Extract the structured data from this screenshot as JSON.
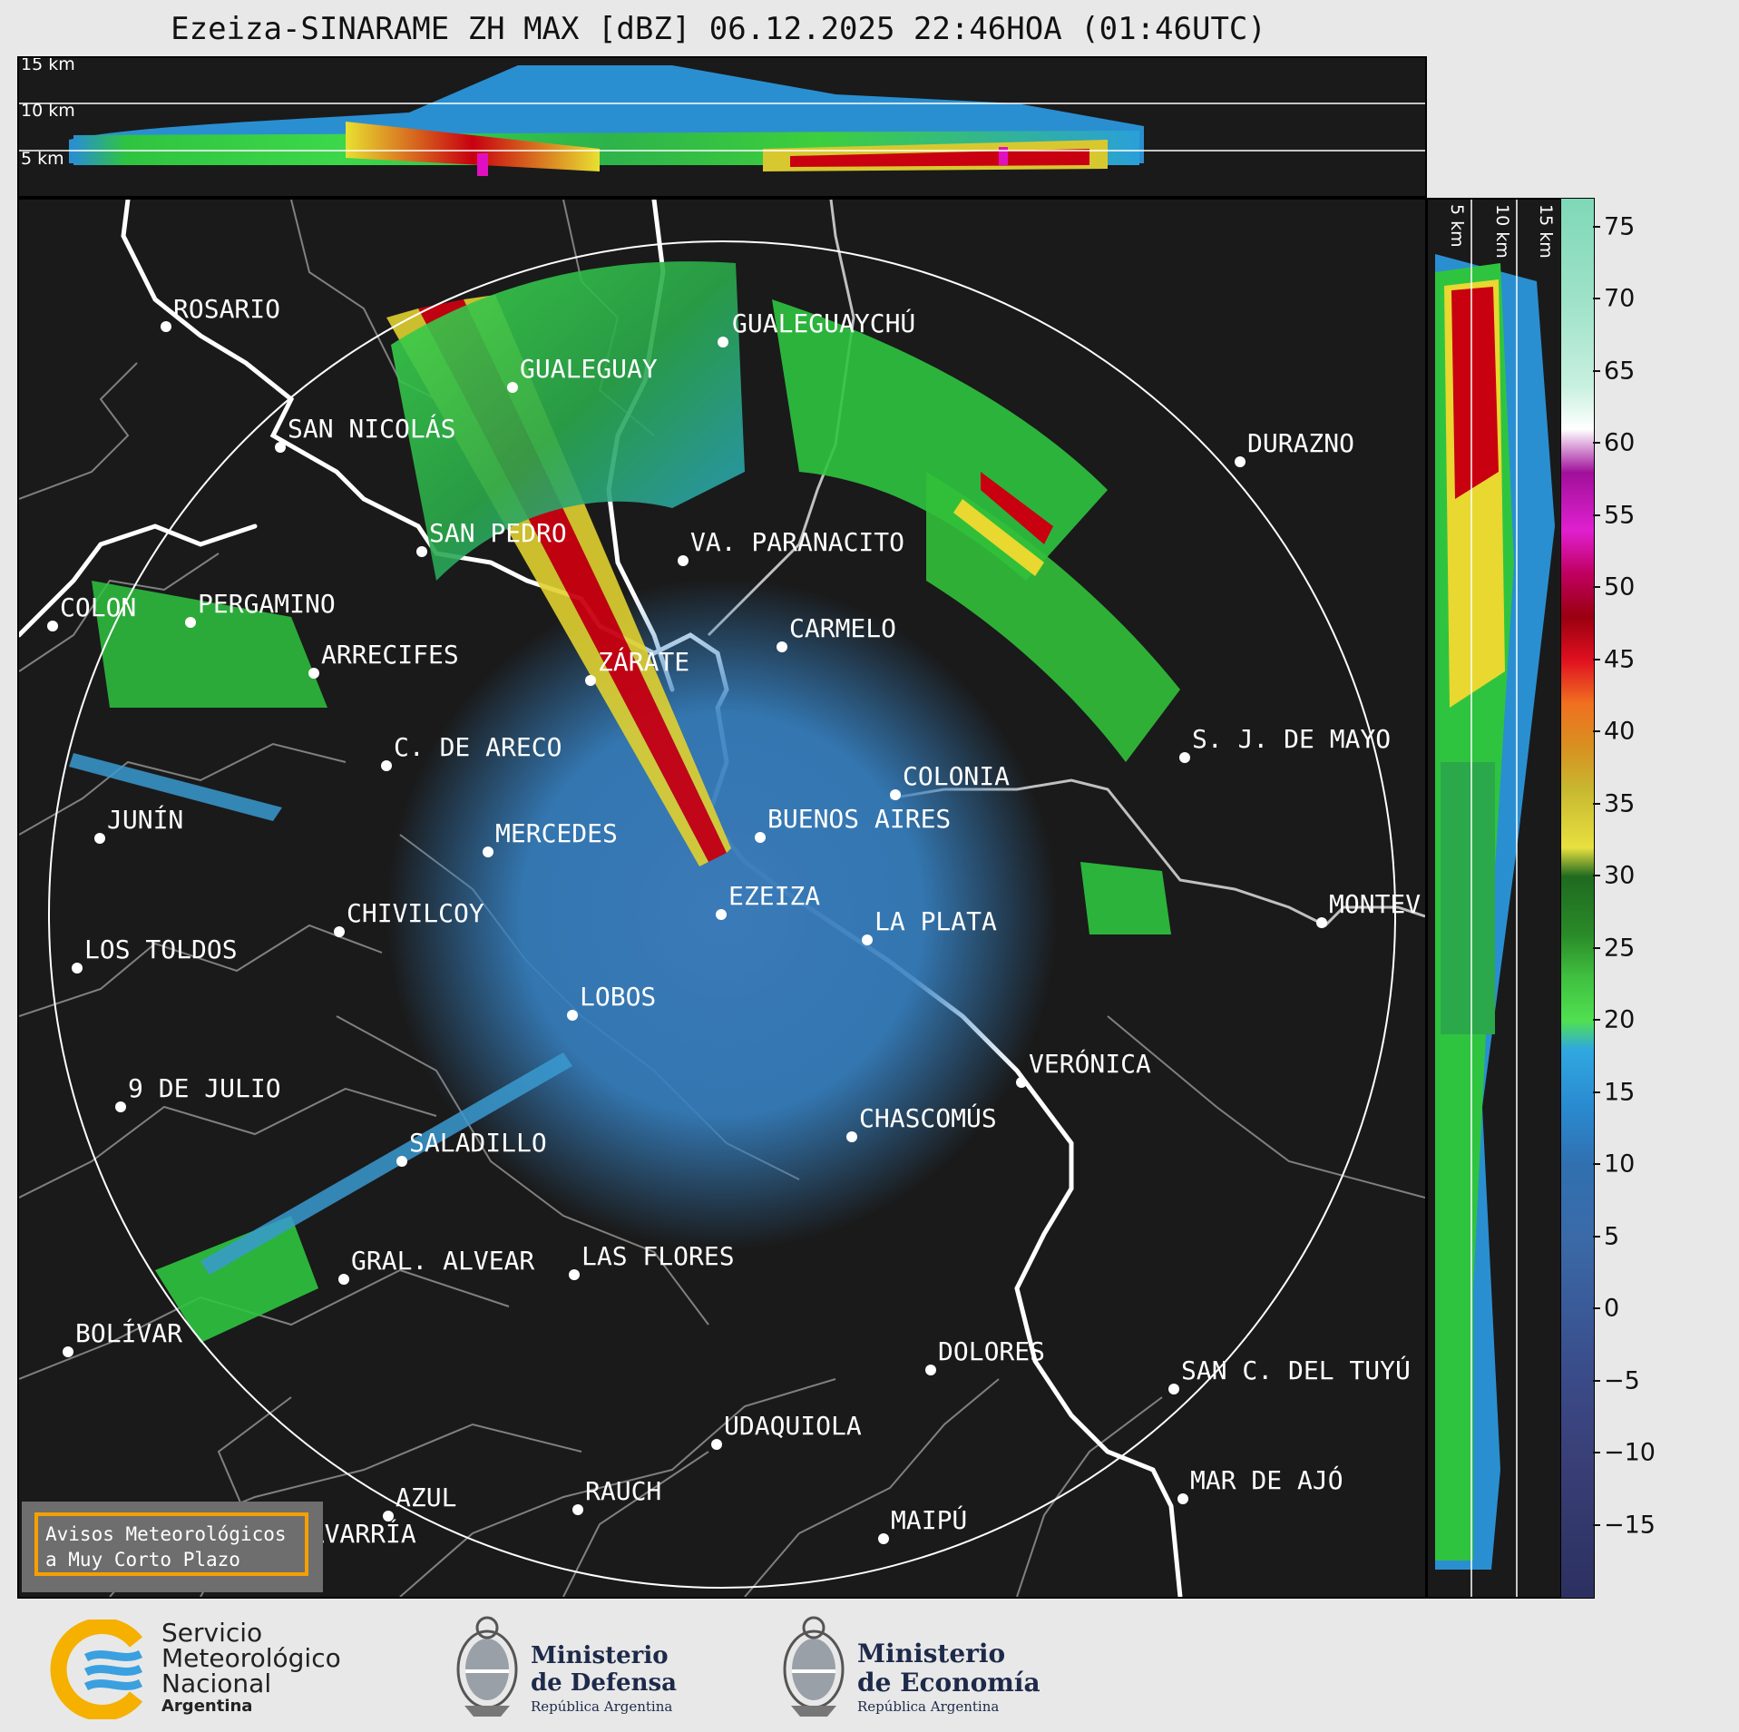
{
  "title": "Ezeiza-SINARAME ZH MAX [dBZ] 06.12.2025 22:46HOA (01:46UTC)",
  "top_panel": {
    "altitude_labels": [
      "15 km",
      "10 km",
      "5 km"
    ]
  },
  "side_panel": {
    "altitude_labels": [
      "5 km",
      "10 km",
      "15 km"
    ]
  },
  "colorbar": {
    "unit": "dBZ",
    "tick_labels": [
      "75",
      "70",
      "65",
      "60",
      "55",
      "50",
      "45",
      "40",
      "35",
      "30",
      "25",
      "20",
      "15",
      "10",
      "5",
      "0",
      "−5",
      "−10",
      "−15"
    ],
    "range": [
      -20,
      77
    ]
  },
  "cities": [
    {
      "name": "ROSARIO"
    },
    {
      "name": "GUALEGUAYCHÚ"
    },
    {
      "name": "GUALEGUAY"
    },
    {
      "name": "SAN NICOLÁS"
    },
    {
      "name": "DURAZNO"
    },
    {
      "name": "SAN PEDRO"
    },
    {
      "name": "VA. PARANACITO"
    },
    {
      "name": "COLON"
    },
    {
      "name": "PERGAMINO"
    },
    {
      "name": "CARMELO"
    },
    {
      "name": "ARRECIFES"
    },
    {
      "name": "ZÁRATE"
    },
    {
      "name": "S. J. DE MAYO"
    },
    {
      "name": "C. DE ARECO"
    },
    {
      "name": "COLONIA"
    },
    {
      "name": "JUNÍN"
    },
    {
      "name": "BUENOS AIRES"
    },
    {
      "name": "MERCEDES"
    },
    {
      "name": "EZEIZA"
    },
    {
      "name": "MONTEV"
    },
    {
      "name": "CHIVILCOY"
    },
    {
      "name": "LA PLATA"
    },
    {
      "name": "LOS TOLDOS"
    },
    {
      "name": "LOBOS"
    },
    {
      "name": "VERÓNICA"
    },
    {
      "name": "9 DE JULIO"
    },
    {
      "name": "CHASCOMÚS"
    },
    {
      "name": "SALADILLO"
    },
    {
      "name": "GRAL. ALVEAR"
    },
    {
      "name": "LAS FLORES"
    },
    {
      "name": "BOLÍVAR"
    },
    {
      "name": "DOLORES"
    },
    {
      "name": "SAN C. DEL TUYÚ"
    },
    {
      "name": "UDAQUIOLA"
    },
    {
      "name": "MAR DE AJÓ"
    },
    {
      "name": "AZUL"
    },
    {
      "name": "RAUCH"
    },
    {
      "name": "MAIPÚ"
    },
    {
      "name": "OLAVARRÍA"
    }
  ],
  "avisos": {
    "line1": "Avisos Meteorológicos",
    "line2": "a Muy Corto Plazo"
  },
  "logos": {
    "smn": {
      "line1": "Servicio",
      "line2": "Meteorológico",
      "line3": "Nacional",
      "line4": "Argentina"
    },
    "defensa": {
      "line1": "Ministerio",
      "line2": "de Defensa",
      "line3": "República Argentina"
    },
    "economia": {
      "line1": "Ministerio",
      "line2": "de Economía",
      "line3": "República Argentina"
    }
  }
}
